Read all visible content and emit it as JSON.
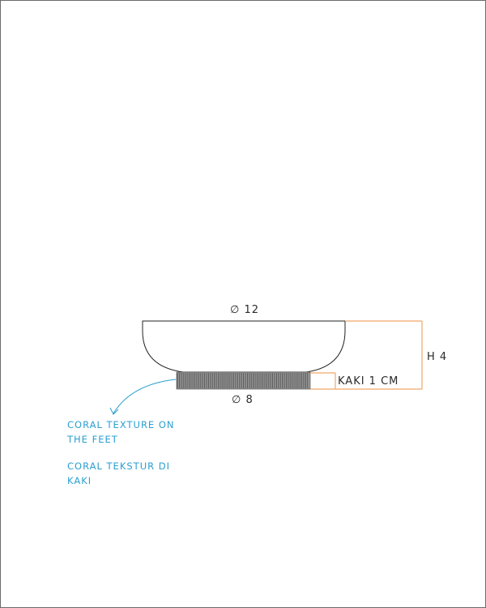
{
  "drawing": {
    "diameter_top": "∅ 12",
    "diameter_bottom": "∅ 8",
    "height_label": "H 4",
    "feet_label": "KAKI 1 CM"
  },
  "notes": {
    "english": "CORAL TEXTURE ON THE FEET",
    "indonesian": "CORAL TEKSTUR DI KAKI"
  },
  "colors": {
    "outline": "#222222",
    "dimension": "#f0a868",
    "note": "#2a9fd0",
    "texture": "#555555"
  }
}
